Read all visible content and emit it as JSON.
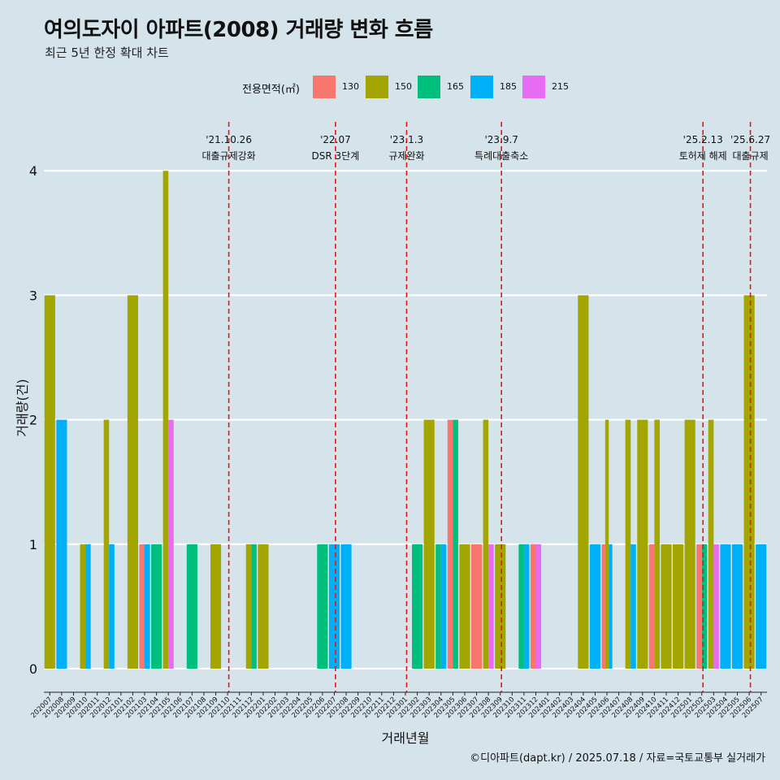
{
  "title": "여의도자이 아파트(2008) 거래량 변화 흐름",
  "subtitle": "최근 5년 한정 확대 차트",
  "legend": {
    "title": "전용면적(㎡)",
    "items": [
      {
        "label": "130",
        "color": "#f8766d"
      },
      {
        "label": "150",
        "color": "#a3a500"
      },
      {
        "label": "165",
        "color": "#00bf7d"
      },
      {
        "label": "185",
        "color": "#00b0f6"
      },
      {
        "label": "215",
        "color": "#e76bf3"
      }
    ]
  },
  "caption": "©디아파트(dapt.kr) / 2025.07.18 / 자료=국토교통부 실거래가",
  "chart_data": {
    "type": "bar",
    "title": "여의도자이 아파트(2008) 거래량 변화 흐름",
    "subtitle": "최근 5년 한정 확대 차트",
    "xlabel": "거래년월",
    "ylabel": "거래량(건)",
    "ylim": [
      0,
      4
    ],
    "yticks": [
      0,
      1,
      2,
      3,
      4
    ],
    "grid": true,
    "legend_position": "top",
    "categories": [
      "202007",
      "202008",
      "202009",
      "202010",
      "202011",
      "202012",
      "202101",
      "202102",
      "202103",
      "202104",
      "202105",
      "202106",
      "202107",
      "202108",
      "202109",
      "202110",
      "202111",
      "202112",
      "202201",
      "202202",
      "202203",
      "202204",
      "202205",
      "202206",
      "202207",
      "202208",
      "202209",
      "202210",
      "202211",
      "202212",
      "202301",
      "202302",
      "202303",
      "202304",
      "202305",
      "202306",
      "202307",
      "202308",
      "202309",
      "202310",
      "202311",
      "202312",
      "202401",
      "202402",
      "202403",
      "202404",
      "202405",
      "202406",
      "202407",
      "202408",
      "202409",
      "202410",
      "202411",
      "202412",
      "202501",
      "202502",
      "202503",
      "202504",
      "202505",
      "202506",
      "202507"
    ],
    "series": [
      {
        "name": "130",
        "color": "#f8766d",
        "values": [
          0,
          0,
          0,
          0,
          0,
          0,
          0,
          0,
          1,
          0,
          0,
          0,
          0,
          0,
          0,
          0,
          0,
          0,
          0,
          0,
          0,
          0,
          0,
          0,
          0,
          0,
          0,
          0,
          0,
          0,
          0,
          0,
          0,
          0,
          2,
          0,
          1,
          0,
          0,
          0,
          0,
          1,
          0,
          0,
          0,
          0,
          0,
          1,
          0,
          0,
          0,
          1,
          0,
          0,
          0,
          1,
          0,
          0,
          0,
          0,
          0
        ]
      },
      {
        "name": "150",
        "color": "#a3a500",
        "values": [
          3,
          0,
          0,
          1,
          0,
          2,
          0,
          3,
          0,
          0,
          4,
          0,
          0,
          0,
          1,
          0,
          0,
          1,
          1,
          0,
          0,
          0,
          0,
          0,
          0,
          0,
          0,
          0,
          0,
          0,
          0,
          0,
          2,
          0,
          0,
          1,
          0,
          2,
          1,
          0,
          0,
          0,
          0,
          0,
          0,
          3,
          0,
          2,
          0,
          2,
          2,
          2,
          1,
          1,
          2,
          0,
          2,
          0,
          0,
          3,
          0
        ]
      },
      {
        "name": "165",
        "color": "#00bf7d",
        "values": [
          0,
          0,
          0,
          0,
          0,
          0,
          0,
          0,
          0,
          1,
          0,
          0,
          1,
          0,
          0,
          0,
          0,
          1,
          0,
          0,
          0,
          0,
          0,
          1,
          0,
          0,
          0,
          0,
          0,
          0,
          0,
          1,
          0,
          1,
          2,
          0,
          0,
          0,
          0,
          0,
          1,
          0,
          0,
          0,
          0,
          0,
          0,
          0,
          0,
          0,
          0,
          0,
          0,
          0,
          0,
          1,
          0,
          0,
          0,
          0,
          0
        ]
      },
      {
        "name": "185",
        "color": "#00b0f6",
        "values": [
          0,
          2,
          0,
          1,
          0,
          1,
          0,
          0,
          1,
          0,
          0,
          0,
          0,
          0,
          0,
          0,
          0,
          0,
          0,
          0,
          0,
          0,
          0,
          0,
          1,
          1,
          0,
          0,
          0,
          0,
          0,
          0,
          0,
          1,
          0,
          0,
          0,
          0,
          0,
          0,
          1,
          0,
          0,
          0,
          0,
          0,
          1,
          1,
          0,
          1,
          0,
          0,
          0,
          0,
          0,
          0,
          0,
          1,
          1,
          0,
          1
        ]
      },
      {
        "name": "215",
        "color": "#e76bf3",
        "values": [
          0,
          0,
          0,
          0,
          0,
          0,
          0,
          0,
          0,
          0,
          2,
          0,
          0,
          0,
          0,
          0,
          0,
          0,
          0,
          0,
          0,
          0,
          0,
          0,
          0,
          0,
          0,
          0,
          0,
          0,
          0,
          0,
          0,
          0,
          0,
          0,
          0,
          1,
          0,
          0,
          0,
          1,
          0,
          0,
          0,
          0,
          0,
          0,
          0,
          0,
          0,
          0,
          0,
          0,
          0,
          0,
          1,
          0,
          0,
          0,
          0
        ]
      }
    ],
    "events": [
      {
        "date": "'21.10.26",
        "label": "대출규제강화",
        "x": 15.6
      },
      {
        "date": "'22.07",
        "label": "DSR 3단계",
        "x": 24.6
      },
      {
        "date": "'23.1.3",
        "label": "규제완화",
        "x": 30.6
      },
      {
        "date": "'23.9.7",
        "label": "특례대출축소",
        "x": 38.6
      },
      {
        "date": "'25.2.13",
        "label": "토허제 해제",
        "x": 55.6
      },
      {
        "date": "'25.6.27",
        "label": "대출규제",
        "x": 59.6
      }
    ]
  }
}
